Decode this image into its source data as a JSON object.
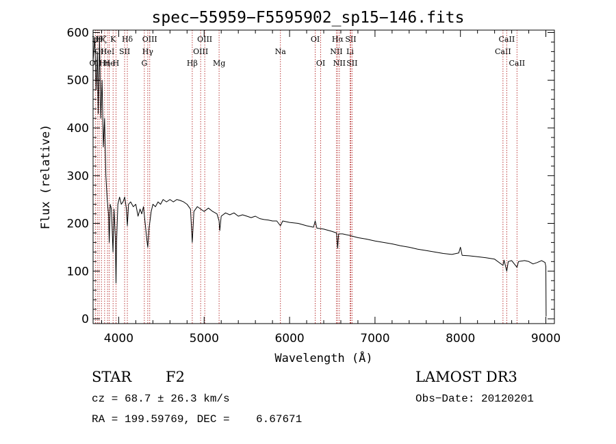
{
  "chart_data": {
    "type": "line",
    "title": "spec−55959−F5595902_sp15−146.fits",
    "xlabel": "Wavelength (Å)",
    "ylabel": "Flux (relative)",
    "xlim": [
      3700,
      9100
    ],
    "ylim": [
      -10,
      605
    ],
    "xticks": [
      4000,
      5000,
      6000,
      7000,
      8000,
      9000
    ],
    "yticks": [
      0,
      100,
      200,
      300,
      400,
      500,
      600
    ],
    "line_color": "#000000",
    "marker_color": "#b22222",
    "series": [
      {
        "name": "flux",
        "points": [
          [
            3700,
            540
          ],
          [
            3720,
            590
          ],
          [
            3735,
            480
          ],
          [
            3750,
            560
          ],
          [
            3760,
            430
          ],
          [
            3775,
            590
          ],
          [
            3790,
            420
          ],
          [
            3805,
            500
          ],
          [
            3820,
            360
          ],
          [
            3835,
            420
          ],
          [
            3850,
            300
          ],
          [
            3865,
            250
          ],
          [
            3880,
            220
          ],
          [
            3889,
            160
          ],
          [
            3900,
            240
          ],
          [
            3915,
            230
          ],
          [
            3933,
            140
          ],
          [
            3945,
            230
          ],
          [
            3960,
            170
          ],
          [
            3968,
            75
          ],
          [
            3975,
            160
          ],
          [
            3990,
            240
          ],
          [
            4010,
            255
          ],
          [
            4030,
            240
          ],
          [
            4050,
            245
          ],
          [
            4070,
            255
          ],
          [
            4090,
            230
          ],
          [
            4101,
            195
          ],
          [
            4115,
            240
          ],
          [
            4140,
            245
          ],
          [
            4170,
            235
          ],
          [
            4200,
            240
          ],
          [
            4226,
            215
          ],
          [
            4250,
            230
          ],
          [
            4270,
            220
          ],
          [
            4290,
            235
          ],
          [
            4310,
            200
          ],
          [
            4330,
            165
          ],
          [
            4340,
            150
          ],
          [
            4355,
            190
          ],
          [
            4380,
            225
          ],
          [
            4400,
            240
          ],
          [
            4430,
            235
          ],
          [
            4460,
            245
          ],
          [
            4490,
            240
          ],
          [
            4520,
            250
          ],
          [
            4560,
            245
          ],
          [
            4600,
            250
          ],
          [
            4640,
            245
          ],
          [
            4680,
            250
          ],
          [
            4720,
            248
          ],
          [
            4760,
            245
          ],
          [
            4800,
            240
          ],
          [
            4840,
            230
          ],
          [
            4861,
            160
          ],
          [
            4880,
            225
          ],
          [
            4920,
            235
          ],
          [
            4960,
            230
          ],
          [
            5000,
            225
          ],
          [
            5050,
            232
          ],
          [
            5100,
            225
          ],
          [
            5150,
            220
          ],
          [
            5175,
            205
          ],
          [
            5183,
            185
          ],
          [
            5200,
            215
          ],
          [
            5250,
            222
          ],
          [
            5300,
            218
          ],
          [
            5350,
            222
          ],
          [
            5400,
            215
          ],
          [
            5450,
            218
          ],
          [
            5500,
            215
          ],
          [
            5550,
            212
          ],
          [
            5600,
            215
          ],
          [
            5650,
            210
          ],
          [
            5700,
            208
          ],
          [
            5750,
            207
          ],
          [
            5800,
            205
          ],
          [
            5850,
            205
          ],
          [
            5893,
            195
          ],
          [
            5920,
            205
          ],
          [
            6000,
            202
          ],
          [
            6100,
            200
          ],
          [
            6200,
            195
          ],
          [
            6280,
            192
          ],
          [
            6300,
            205
          ],
          [
            6320,
            190
          ],
          [
            6400,
            188
          ],
          [
            6500,
            183
          ],
          [
            6550,
            180
          ],
          [
            6563,
            148
          ],
          [
            6575,
            178
          ],
          [
            6620,
            178
          ],
          [
            6700,
            175
          ],
          [
            6800,
            170
          ],
          [
            6900,
            167
          ],
          [
            7000,
            163
          ],
          [
            7100,
            160
          ],
          [
            7200,
            157
          ],
          [
            7300,
            153
          ],
          [
            7400,
            150
          ],
          [
            7500,
            146
          ],
          [
            7600,
            143
          ],
          [
            7700,
            140
          ],
          [
            7800,
            137
          ],
          [
            7900,
            135
          ],
          [
            7980,
            138
          ],
          [
            8000,
            150
          ],
          [
            8020,
            133
          ],
          [
            8100,
            132
          ],
          [
            8200,
            130
          ],
          [
            8300,
            128
          ],
          [
            8400,
            125
          ],
          [
            8498,
            112
          ],
          [
            8510,
            123
          ],
          [
            8542,
            100
          ],
          [
            8560,
            120
          ],
          [
            8600,
            122
          ],
          [
            8662,
            108
          ],
          [
            8680,
            120
          ],
          [
            8750,
            122
          ],
          [
            8800,
            120
          ],
          [
            8850,
            115
          ],
          [
            8900,
            118
          ],
          [
            8950,
            122
          ],
          [
            8990,
            118
          ],
          [
            9000,
            110
          ],
          [
            9003,
            5
          ]
        ]
      }
    ],
    "line_markers": [
      {
        "wavelength": 3727,
        "row": 2,
        "label": "OII"
      },
      {
        "wavelength": 3750,
        "row": 0,
        "label": "Hθ"
      },
      {
        "wavelength": 3771,
        "row": 1,
        "label": "OI"
      },
      {
        "wavelength": 3798,
        "row": 0,
        "label": "Hζ"
      },
      {
        "wavelength": 3835,
        "row": 2,
        "label": "Hη"
      },
      {
        "wavelength": 3869,
        "row": 1,
        "label": "HeI"
      },
      {
        "wavelength": 3889,
        "row": 2,
        "label": "He"
      },
      {
        "wavelength": 3934,
        "row": 0,
        "label": "K"
      },
      {
        "wavelength": 3968,
        "row": 2,
        "label": "H"
      },
      {
        "wavelength": 4069,
        "row": 1,
        "label": "SII"
      },
      {
        "wavelength": 4101,
        "row": 0,
        "label": "Hδ"
      },
      {
        "wavelength": 4300,
        "row": 2,
        "label": "G"
      },
      {
        "wavelength": 4340,
        "row": 1,
        "label": "Hγ"
      },
      {
        "wavelength": 4363,
        "row": 0,
        "label": "OIII"
      },
      {
        "wavelength": 4861,
        "row": 2,
        "label": "Hβ"
      },
      {
        "wavelength": 4959,
        "row": 1,
        "label": "OIII"
      },
      {
        "wavelength": 5007,
        "row": 0,
        "label": "OIII"
      },
      {
        "wavelength": 5175,
        "row": 2,
        "label": "Mg"
      },
      {
        "wavelength": 5893,
        "row": 1,
        "label": "Na"
      },
      {
        "wavelength": 6300,
        "row": 0,
        "label": "OI"
      },
      {
        "wavelength": 6364,
        "row": 2,
        "label": "OI"
      },
      {
        "wavelength": 6548,
        "row": 1,
        "label": "NII"
      },
      {
        "wavelength": 6563,
        "row": 0,
        "label": "Hα"
      },
      {
        "wavelength": 6583,
        "row": 2,
        "label": "NII"
      },
      {
        "wavelength": 6708,
        "row": 1,
        "label": "Li"
      },
      {
        "wavelength": 6716,
        "row": 0,
        "label": "SII"
      },
      {
        "wavelength": 6731,
        "row": 2,
        "label": "SII"
      },
      {
        "wavelength": 8498,
        "row": 1,
        "label": "CaII"
      },
      {
        "wavelength": 8542,
        "row": 0,
        "label": "CaII"
      },
      {
        "wavelength": 8662,
        "row": 2,
        "label": "CaII"
      }
    ]
  },
  "info": {
    "class_label": "STAR",
    "subclass": "F2",
    "survey": "LAMOST DR3",
    "redshift": "cz = 68.7 ± 26.3 km/s",
    "obs_date": "Obs−Date: 20120201",
    "coords": "RA = 199.59769, DEC =    6.67671"
  }
}
